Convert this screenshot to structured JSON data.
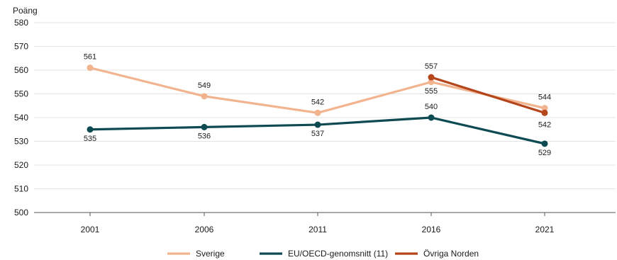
{
  "chart_data": {
    "type": "line",
    "title": "",
    "ylabel": "Poäng",
    "xlabel": "",
    "ylim": [
      500,
      580
    ],
    "yticks": [
      500,
      510,
      520,
      530,
      540,
      550,
      560,
      570,
      580
    ],
    "categories": [
      "2001",
      "2006",
      "2011",
      "2016",
      "2021"
    ],
    "grid": true,
    "legend_position": "bottom",
    "series": [
      {
        "name": "Sverige",
        "color": "#f2b48f",
        "values": [
          561,
          549,
          542,
          555,
          544
        ],
        "labels": [
          "561",
          "549",
          "542",
          "555",
          "544"
        ]
      },
      {
        "name": "EU/OECD-genomsnitt (11)",
        "color": "#0d4a52",
        "values": [
          535,
          536,
          537,
          540,
          529
        ],
        "labels": [
          "535",
          "536",
          "537",
          "540",
          "529"
        ]
      },
      {
        "name": "Övriga Norden",
        "color": "#b5451b",
        "values": [
          null,
          null,
          null,
          557,
          542
        ],
        "labels": [
          null,
          null,
          null,
          "557",
          "542"
        ]
      }
    ]
  }
}
